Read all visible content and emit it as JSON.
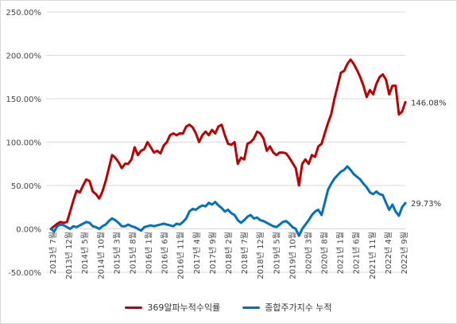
{
  "chart_data": {
    "type": "line",
    "title": "",
    "xlabel": "",
    "ylabel": "",
    "ylim": [
      -50,
      250
    ],
    "yticks": [
      -50,
      0,
      50,
      100,
      150,
      200,
      250
    ],
    "ytick_labels": [
      "-50.00%",
      "0.00%",
      "50.00%",
      "100.00%",
      "150.00%",
      "200.00%",
      "250.00%"
    ],
    "x_tick_labels": [
      "2013년 7월",
      "2013년 12월",
      "2014년 5월",
      "2014년 10월",
      "2015년 3월",
      "2015년 8월",
      "2016년 1월",
      "2016년 6월",
      "2016년 11월",
      "2017년 4월",
      "2017년 9월",
      "2018년 2월",
      "2018년 7월",
      "2018년 12월",
      "2019년 5월",
      "2019년 10월",
      "2020년 3월",
      "2020년 8월",
      "2021년 1월",
      "2021년 6월",
      "2021년 11월",
      "2022년 4월",
      "2022년 9월"
    ],
    "grid": true,
    "legend_position": "bottom",
    "series": [
      {
        "name": "369알파누적수익률",
        "color": "#c00000",
        "end_label": "146.08%",
        "values": [
          0,
          3,
          6,
          8,
          7,
          8,
          20,
          33,
          44,
          42,
          50,
          57,
          55,
          43,
          40,
          35,
          43,
          55,
          70,
          85,
          82,
          77,
          70,
          75,
          75,
          80,
          94,
          85,
          90,
          92,
          100,
          94,
          88,
          90,
          87,
          96,
          100,
          108,
          110,
          108,
          110,
          110,
          118,
          120,
          117,
          110,
          100,
          108,
          112,
          108,
          114,
          110,
          118,
          120,
          108,
          98,
          97,
          100,
          75,
          82,
          80,
          98,
          100,
          104,
          112,
          110,
          104,
          90,
          95,
          88,
          85,
          88,
          88,
          87,
          82,
          76,
          70,
          50,
          75,
          80,
          75,
          85,
          83,
          95,
          98,
          110,
          122,
          132,
          150,
          165,
          180,
          182,
          190,
          195,
          190,
          183,
          175,
          165,
          152,
          160,
          155,
          167,
          175,
          178,
          172,
          155,
          165,
          165,
          132,
          135,
          146.08
        ]
      },
      {
        "name": "종합주가지수 누적",
        "color": "#0070c0",
        "end_label": "29.73%",
        "values": [
          0,
          -3,
          3,
          5,
          4,
          2,
          0,
          3,
          2,
          4,
          6,
          8,
          7,
          3,
          2,
          0,
          3,
          5,
          9,
          12,
          10,
          7,
          3,
          3,
          5,
          3,
          2,
          0,
          -2,
          2,
          3,
          4,
          3,
          4,
          5,
          6,
          5,
          4,
          3,
          6,
          5,
          8,
          12,
          20,
          23,
          22,
          25,
          27,
          26,
          30,
          28,
          31,
          27,
          24,
          20,
          22,
          18,
          16,
          10,
          7,
          10,
          14,
          16,
          12,
          13,
          10,
          9,
          7,
          5,
          3,
          2,
          5,
          8,
          9,
          6,
          2,
          0,
          -8,
          0,
          5,
          10,
          16,
          20,
          22,
          16,
          30,
          45,
          52,
          58,
          62,
          66,
          68,
          72,
          68,
          63,
          60,
          57,
          52,
          48,
          42,
          40,
          43,
          40,
          39,
          30,
          22,
          28,
          20,
          15,
          25,
          29.73
        ]
      }
    ]
  }
}
